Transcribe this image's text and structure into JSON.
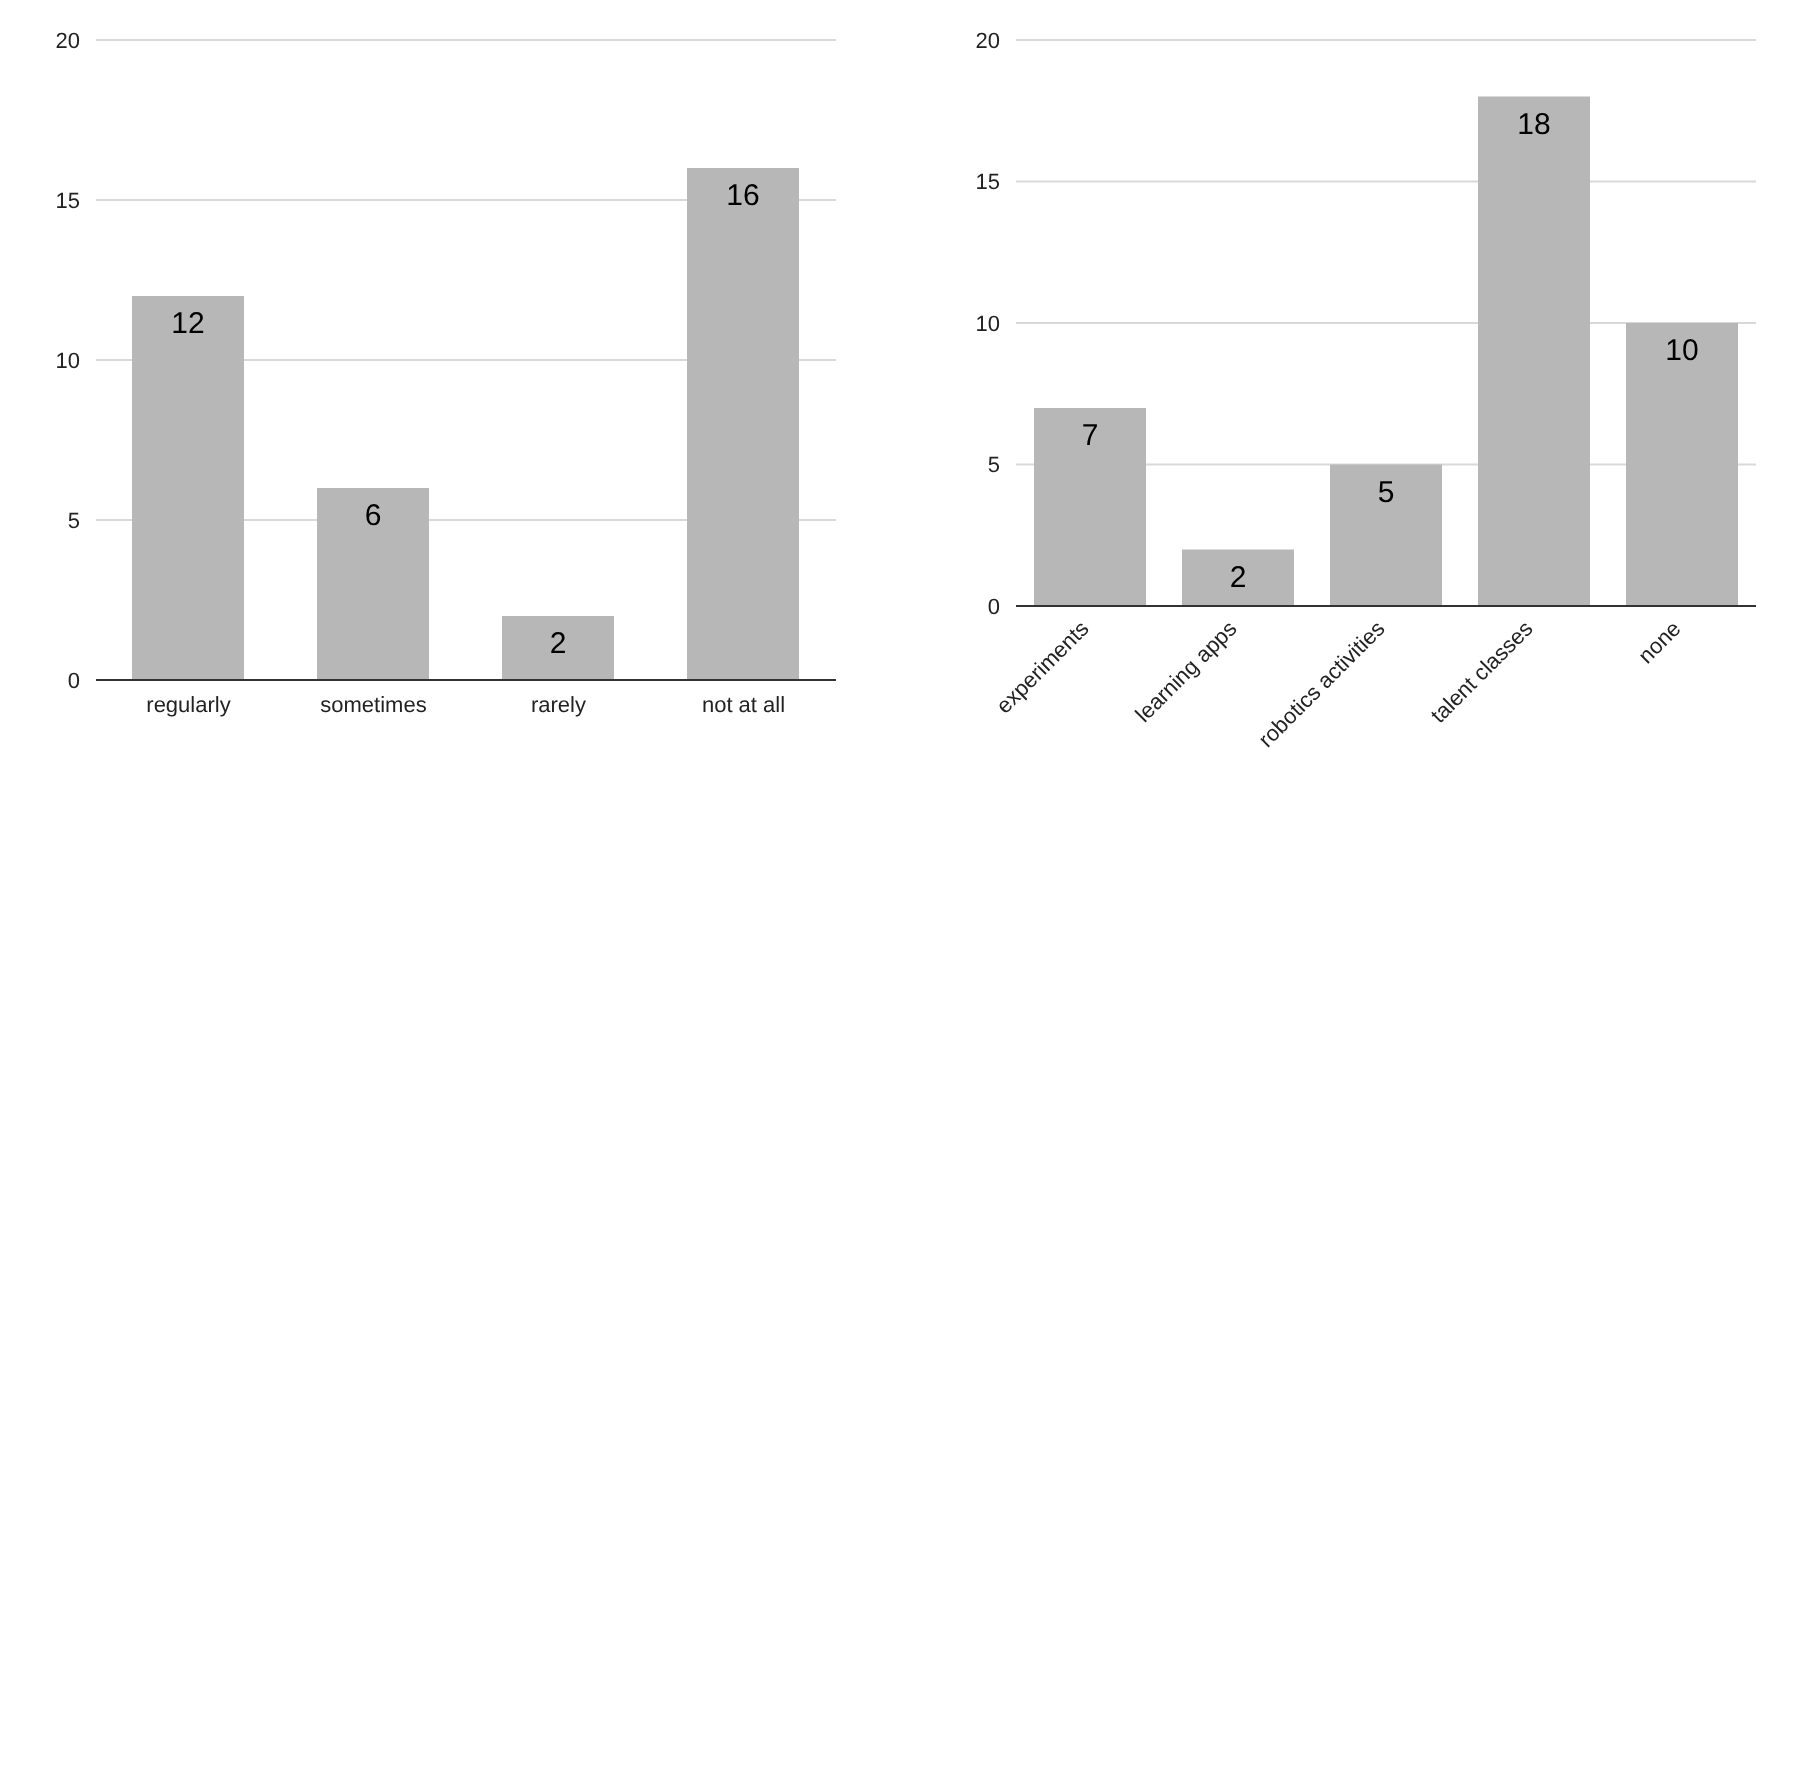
{
  "chart_data": [
    {
      "type": "bar",
      "categories": [
        "regularly",
        "sometimes",
        "rarely",
        "not at all"
      ],
      "values": [
        12,
        6,
        2,
        16
      ],
      "color": "#b7b7b7",
      "ylim": [
        0,
        20
      ],
      "yticks": [
        0,
        5,
        10,
        15,
        20
      ],
      "grid": "y",
      "data_labels": true
    },
    {
      "type": "bar",
      "categories": [
        "experiments",
        "learning apps",
        "robotics activities",
        "talent classes",
        "none"
      ],
      "values": [
        7,
        2,
        5,
        18,
        10
      ],
      "color": "#b7b7b7",
      "ylim": [
        0,
        20
      ],
      "yticks": [
        0,
        5,
        10,
        15,
        20
      ],
      "grid": "y",
      "data_labels": true
    }
  ]
}
